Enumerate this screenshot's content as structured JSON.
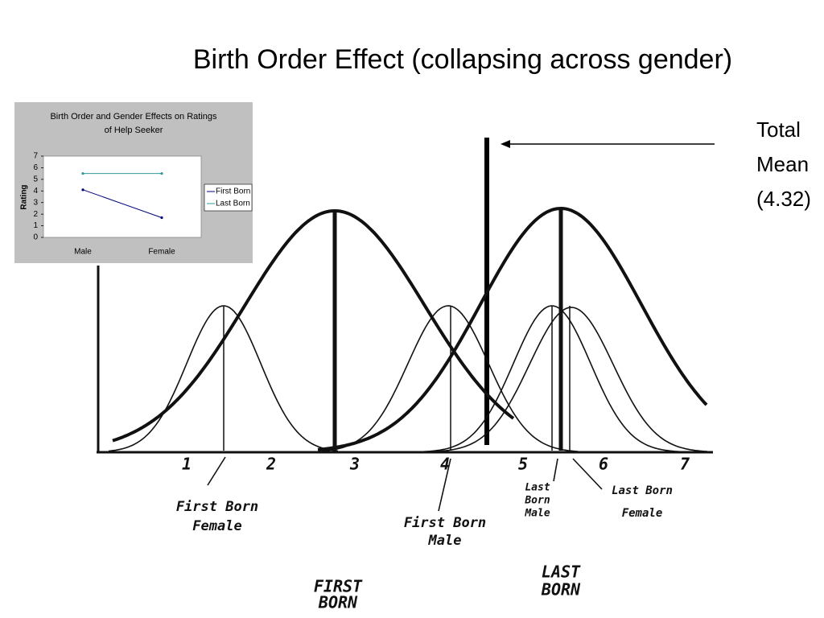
{
  "title": "Birth Order Effect (collapsing across gender)",
  "total_mean_label": [
    "Total",
    "Mean",
    "(4.32)"
  ],
  "sketch": {
    "x_labels": [
      "1",
      "2",
      "3",
      "4",
      "5",
      "6",
      "7"
    ],
    "labels": {
      "first_born_female": [
        "First Born",
        "Female"
      ],
      "first_born_male": [
        "First Born",
        "Male"
      ],
      "last_born_male": [
        "Last",
        "Born",
        "Male"
      ],
      "last_born_female": [
        "Last Born",
        "Female"
      ],
      "first_born": [
        "FIRST",
        "BORN"
      ],
      "last_born": [
        "LAST",
        "BORN"
      ]
    }
  },
  "chart_data": {
    "type": "line",
    "title": "Birth Order and Gender Effects on Ratings of Help Seeker",
    "y_label": "Rating",
    "categories": [
      "Male",
      "Female"
    ],
    "series": [
      {
        "name": "First Born",
        "color": "#000080",
        "values": [
          4.1,
          1.7
        ]
      },
      {
        "name": "Last Born",
        "color": "#339999",
        "values": [
          5.5,
          5.5
        ]
      }
    ],
    "ylim": [
      0,
      7
    ],
    "yticks": [
      0,
      1,
      2,
      3,
      4,
      5,
      6,
      7
    ],
    "legend": "right"
  }
}
